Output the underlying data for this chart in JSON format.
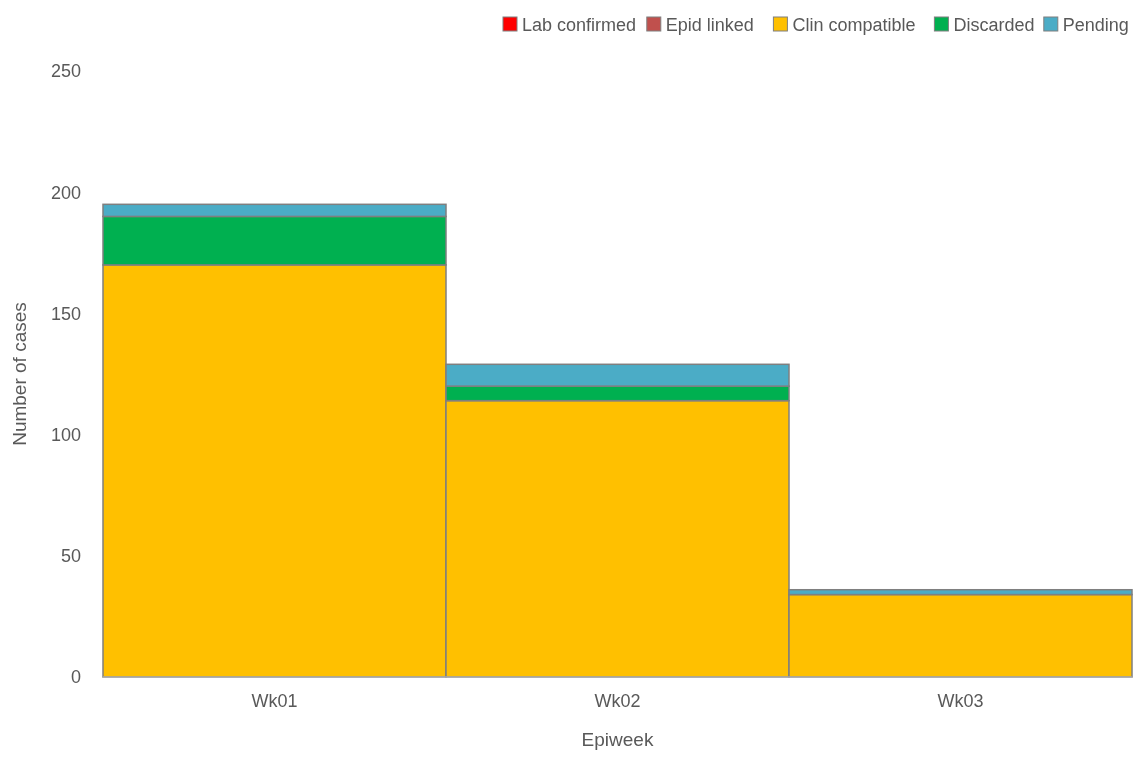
{
  "chart_data": {
    "type": "bar",
    "stacked": true,
    "xlabel": "Epiweek",
    "ylabel": "Number of cases",
    "categories": [
      "Wk01",
      "Wk02",
      "Wk03"
    ],
    "series": [
      {
        "name": "Lab confirmed",
        "color": "#ff0000",
        "values": [
          0,
          0,
          0
        ]
      },
      {
        "name": "Epid linked",
        "color": "#c0504d",
        "values": [
          0,
          0,
          0
        ]
      },
      {
        "name": "Clin compatible",
        "color": "#ffc000",
        "values": [
          170,
          114,
          34
        ]
      },
      {
        "name": "Discarded",
        "color": "#00b050",
        "values": [
          20,
          6,
          0
        ]
      },
      {
        "name": "Pending",
        "color": "#4bacc6",
        "values": [
          5,
          9,
          2
        ]
      }
    ],
    "ylim": [
      0,
      250
    ],
    "yticks": [
      0,
      50,
      100,
      150,
      200,
      250
    ],
    "grid": false,
    "legend": "top right"
  }
}
